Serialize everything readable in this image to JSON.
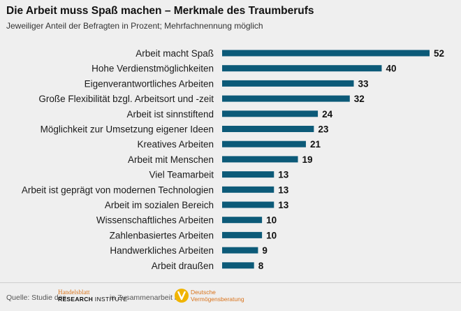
{
  "chart_data": {
    "type": "bar",
    "orientation": "horizontal",
    "title": "Die Arbeit muss Spaß machen – Merkmale des Traumberufs",
    "subtitle": "Jeweiliger Anteil der Befragten in Prozent; Mehrfachnennung möglich",
    "categories": [
      "Arbeit macht Spaß",
      "Hohe Verdienstmöglichkeiten",
      "Eigenverantwortliches Arbeiten",
      "Große Flexibilität bzgl. Arbeitsort und -zeit",
      "Arbeit ist sinnstiftend",
      "Möglichkeit zur Umsetzung eigener Ideen",
      "Kreatives Arbeiten",
      "Arbeit mit Menschen",
      "Viel Teamarbeit",
      "Arbeit ist geprägt von modernen Technologien",
      "Arbeit im sozialen Bereich",
      "Wissenschaftliches Arbeiten",
      "Zahlenbasiertes Arbeiten",
      "Handwerkliches Arbeiten",
      "Arbeit draußen"
    ],
    "values": [
      52,
      40,
      33,
      32,
      24,
      23,
      21,
      19,
      13,
      13,
      13,
      10,
      10,
      9,
      8
    ],
    "xlim": [
      0,
      52
    ],
    "grid": false,
    "bar_color": "#0c5a78"
  },
  "footer": {
    "source_prefix": "Quelle: Studie des",
    "hb_line1": "Handelsblatt",
    "hb_line2_bold": "RESEARCH",
    "hb_line2_thin": "INSTITUTE",
    "middle": "in Zusammenarbeit mit",
    "dv_line1": "Deutsche",
    "dv_line2": "Vermögensberatung"
  },
  "colors": {
    "background": "#efefef",
    "bar": "#0c5a78",
    "logo_accent": "#d9731b",
    "dv_logo": "#f0b400"
  }
}
